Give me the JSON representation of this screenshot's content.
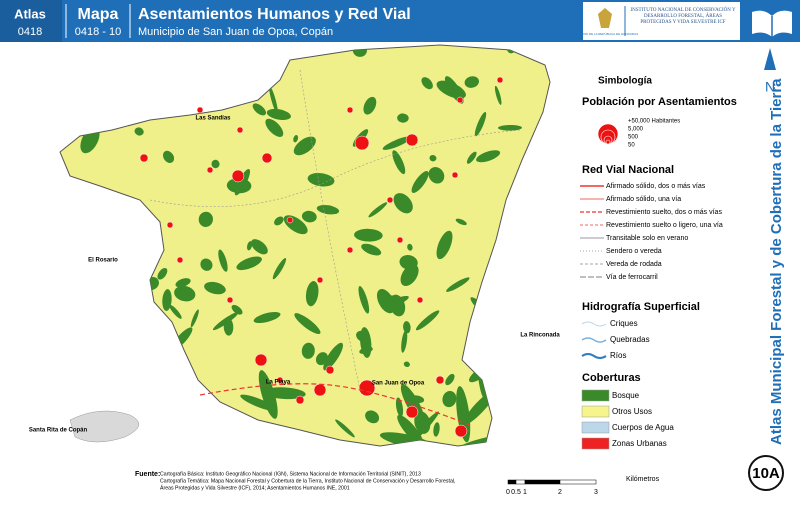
{
  "header": {
    "atlas_label": "Atlas",
    "atlas_code": "0418",
    "map_label": "Mapa",
    "map_code": "0418 - 10",
    "title": "Asentamientos Humanos y Red Vial",
    "subtitle": "Municipio de San Juan de Opoa, Copán",
    "logo_left": "GOBIERNO DE LA REPÚBLICA DE HONDURAS",
    "logo_right": "INSTITUTO NACIONAL DE CONSERVACIÓN Y DESARROLLO FORESTAL, ÁREAS PROTEGIDAS Y VIDA SILVESTRE ICF"
  },
  "map_labels": [
    "Las Sandías",
    "El Rosario",
    "La Rinconada",
    "La Playa",
    "San Juan de Opoa",
    "Santa Rita de Copán"
  ],
  "legend": {
    "title": "Simbología",
    "population": {
      "title": "Población por Asentamientos",
      "sizes": [
        "+50,000 Habitantes",
        "5,000",
        "500",
        "50"
      ]
    },
    "roads": {
      "title": "Red Vial Nacional",
      "items": [
        "Afirmado sólido, dos o más vías",
        "Afirmado sólido, una vía",
        "Revestimiento suelto, dos o más vías",
        "Revestimiento suelto o ligero, una vía",
        "Transitable solo en verano",
        "Sendero o vereda",
        "Vereda de rodada",
        "Vía de ferrocarril"
      ]
    },
    "hydro": {
      "title": "Hidrografía Superficial",
      "items": [
        "Criques",
        "Quebradas",
        "Ríos"
      ]
    },
    "cover": {
      "title": "Coberturas",
      "items": [
        {
          "name": "Bosque",
          "color": "#3a8a2a"
        },
        {
          "name": "Otros Usos",
          "color": "#f5f58c"
        },
        {
          "name": "Cuerpos de Agua",
          "color": "#bcd6ea"
        },
        {
          "name": "Zonas Urbanas",
          "color": "#ee2222"
        }
      ]
    }
  },
  "side_title": "Atlas Municipal Forestal y de Cobertura de la Tierra",
  "north": "N",
  "badge": "10A",
  "scale": {
    "unit": "Kilómetros",
    "ticks": [
      "0",
      "0.5",
      "1",
      "2",
      "3"
    ]
  },
  "source": {
    "label": "Fuente:",
    "lines": [
      "Cartografía Básica: Instituto Geográfico Nacional (IGN), Sistema Nacional de Información Territorial (SINIT), 2013",
      "Cartografía Temática: Mapa Nacional Forestal y Cobertura de la Tierra, Instituto Nacional de Conservación y Desarrollo Forestal,",
      "Áreas Protegidas y Vida Silvestre (ICF), 2014; Asentamientos Humanos INE, 2001"
    ]
  }
}
